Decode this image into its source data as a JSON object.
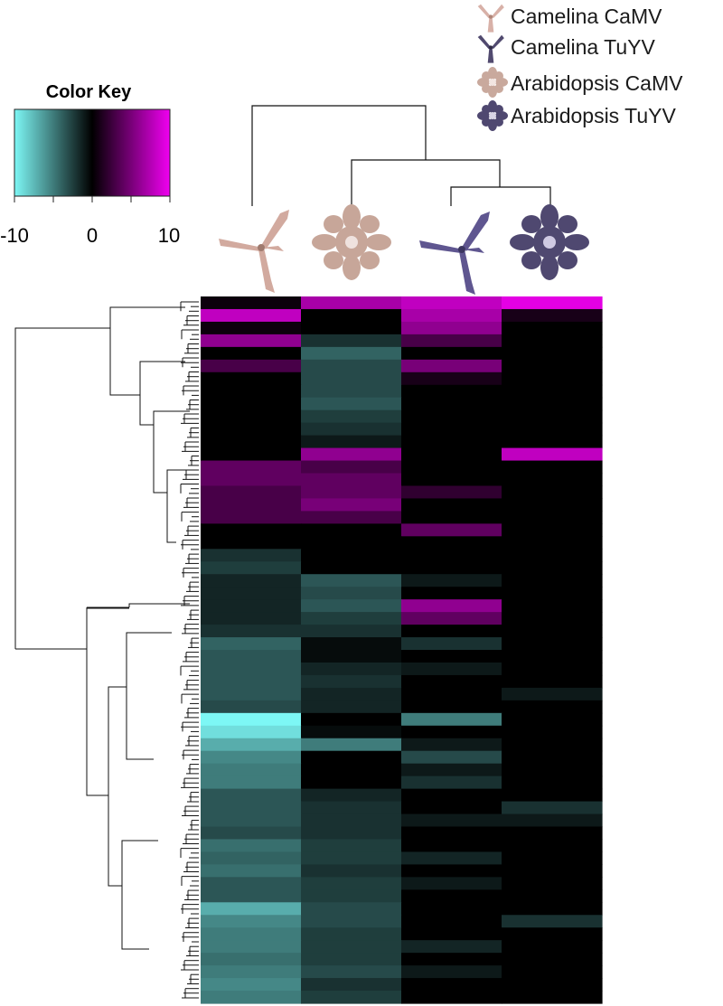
{
  "chart_data": {
    "type": "heatmap",
    "color_key": {
      "title": "Color Key",
      "range": [
        -10,
        10
      ],
      "ticks": [
        -10,
        -5,
        0,
        5,
        10
      ],
      "tick_labels": [
        "-10",
        "0",
        "10"
      ],
      "low_color": "#7df7f5",
      "mid_color": "#000000",
      "high_color": "#f000f0"
    },
    "columns": [
      "Camelina CaMV",
      "Arabidopsis CaMV",
      "Camelina TuYV",
      "Arabidopsis TuYV"
    ],
    "legend": [
      {
        "label": "Camelina CaMV",
        "icon": "camelina-plant-icon",
        "color": "#d8b1a8"
      },
      {
        "label": "Camelina TuYV",
        "icon": "camelina-plant-icon",
        "color": "#514a6f"
      },
      {
        "label": "Arabidopsis CaMV",
        "icon": "arabidopsis-rosette-icon",
        "color": "#c9a99d"
      },
      {
        "label": "Arabidopsis TuYV",
        "icon": "arabidopsis-rosette-icon",
        "color": "#4f4870"
      }
    ],
    "column_colors": [
      "#d2aa9f",
      "#c7a699",
      "#5f5690",
      "#4f4870"
    ],
    "column_dendrogram": "((Camelina CaMV),((Arabidopsis CaMV),(Camelina TuYV, Arabidopsis TuYV)))",
    "row_clusters": "two major clusters: top block of ~110 genes and bottom block of ~150 genes",
    "row_blocks": [
      {
        "values": [
          0.5,
          7,
          8,
          9.5
        ]
      },
      {
        "values": [
          8,
          0,
          7,
          1
        ]
      },
      {
        "values": [
          0.5,
          0,
          6,
          0
        ]
      },
      {
        "values": [
          6,
          -2,
          3,
          0
        ]
      },
      {
        "values": [
          0,
          -4,
          0,
          0
        ]
      },
      {
        "values": [
          3,
          -3,
          5,
          0
        ]
      },
      {
        "values": [
          0,
          -3,
          1,
          0
        ]
      },
      {
        "values": [
          0,
          -3,
          0,
          0
        ]
      },
      {
        "values": [
          0,
          -3.5,
          0,
          0
        ]
      },
      {
        "values": [
          0,
          -2.5,
          0,
          0
        ]
      },
      {
        "values": [
          0,
          -2,
          0,
          0
        ]
      },
      {
        "values": [
          0,
          -1,
          0,
          0
        ]
      },
      {
        "values": [
          0,
          6,
          0,
          8
        ]
      },
      {
        "values": [
          4,
          3,
          0,
          0
        ]
      },
      {
        "values": [
          4,
          4,
          0,
          0
        ]
      },
      {
        "values": [
          3,
          4,
          2,
          0
        ]
      },
      {
        "values": [
          3,
          5,
          0,
          0
        ]
      },
      {
        "values": [
          3,
          3,
          0,
          0
        ]
      },
      {
        "values": [
          0,
          0,
          4,
          0
        ]
      },
      {
        "values": [
          0,
          0,
          0,
          0
        ]
      },
      {
        "values": [
          -2,
          0,
          0,
          0
        ]
      },
      {
        "values": [
          -2.5,
          0,
          0,
          0
        ]
      },
      {
        "values": [
          -1.5,
          -3.5,
          -1,
          0
        ]
      },
      {
        "values": [
          -1.5,
          -3,
          0,
          0
        ]
      },
      {
        "values": [
          -1.5,
          -3.5,
          6,
          0
        ]
      },
      {
        "values": [
          -1.5,
          -2.5,
          4,
          0
        ]
      },
      {
        "values": [
          -2,
          -2,
          0,
          0
        ]
      },
      {
        "values": [
          -4,
          -0.5,
          -2,
          0
        ]
      },
      {
        "values": [
          -3.5,
          -0.5,
          0,
          0
        ]
      },
      {
        "values": [
          -3.5,
          -1.5,
          -1,
          0
        ]
      },
      {
        "values": [
          -3.5,
          -2,
          0,
          0
        ]
      },
      {
        "values": [
          -3.5,
          -1.5,
          0,
          -1
        ]
      },
      {
        "values": [
          -3,
          -1.5,
          0,
          0
        ]
      },
      {
        "values": [
          -10,
          0,
          -5,
          0
        ]
      },
      {
        "values": [
          -9,
          -0.5,
          0,
          0
        ]
      },
      {
        "values": [
          -7,
          -5,
          -1,
          0
        ]
      },
      {
        "values": [
          -5.5,
          0,
          -3,
          0
        ]
      },
      {
        "values": [
          -5,
          0,
          -1,
          0
        ]
      },
      {
        "values": [
          -5,
          0,
          -2,
          0
        ]
      },
      {
        "values": [
          -3.5,
          -1.5,
          0,
          0
        ]
      },
      {
        "values": [
          -3.5,
          -2,
          0,
          -2
        ]
      },
      {
        "values": [
          -3.5,
          -2,
          -1,
          -1
        ]
      },
      {
        "values": [
          -3,
          -2,
          0,
          0
        ]
      },
      {
        "values": [
          -4.5,
          -2.5,
          0,
          0
        ]
      },
      {
        "values": [
          -4,
          -2.5,
          -1.5,
          0
        ]
      },
      {
        "values": [
          -4.5,
          -2,
          0,
          0
        ]
      },
      {
        "values": [
          -3.5,
          -2.5,
          -1,
          0
        ]
      },
      {
        "values": [
          -3.5,
          -2.5,
          0,
          0
        ]
      },
      {
        "values": [
          -7,
          -3,
          0,
          0
        ]
      },
      {
        "values": [
          -5.5,
          -3,
          0,
          -2
        ]
      },
      {
        "values": [
          -5,
          -2.5,
          0,
          0
        ]
      },
      {
        "values": [
          -5,
          -2.5,
          -1.5,
          0
        ]
      },
      {
        "values": [
          -4.5,
          -2.5,
          0,
          0
        ]
      },
      {
        "values": [
          -5,
          -3,
          -1,
          0
        ]
      },
      {
        "values": [
          -5.5,
          -2,
          0,
          0
        ]
      },
      {
        "values": [
          -5,
          -2.5,
          0,
          0
        ]
      }
    ]
  }
}
